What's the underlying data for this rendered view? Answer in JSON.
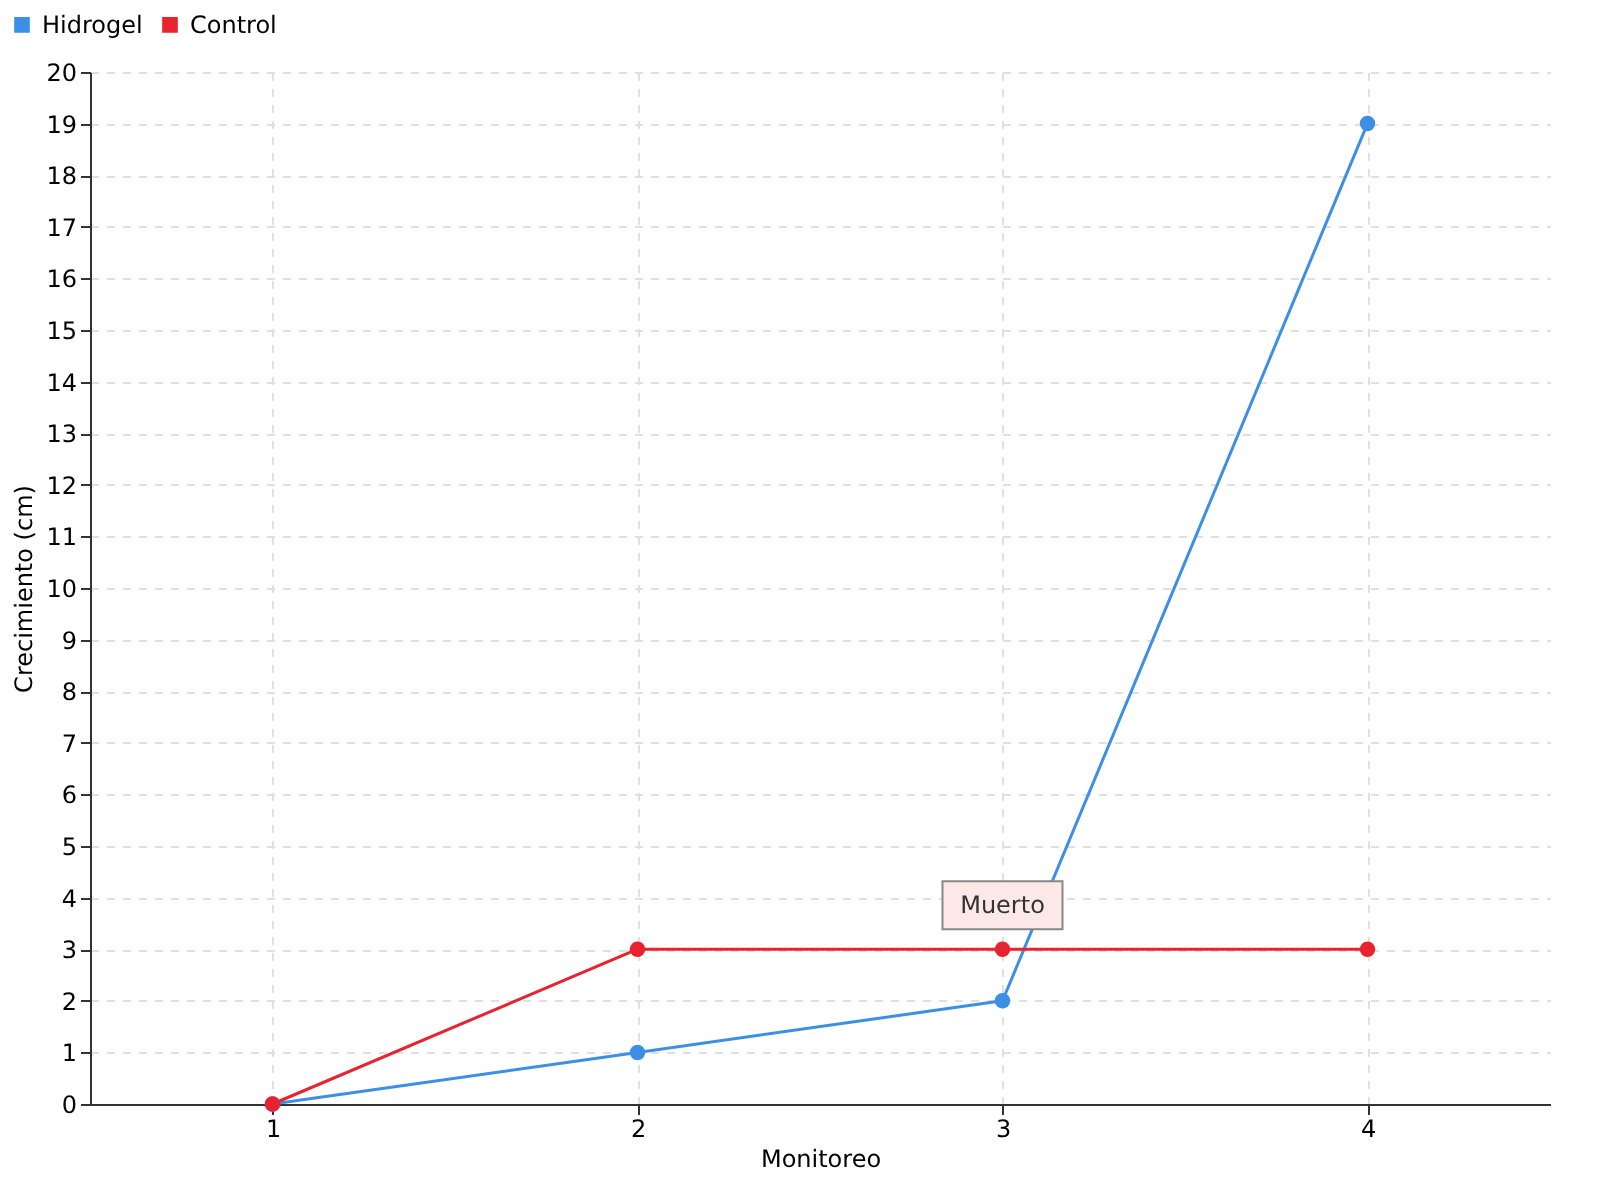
{
  "chart_data": {
    "type": "line",
    "xlabel": "Monitoreo",
    "ylabel": "Crecimiento (cm)",
    "x": [
      1,
      2,
      3,
      4
    ],
    "xlim": [
      0.5,
      4.5
    ],
    "xticks": [
      1,
      2,
      3,
      4
    ],
    "ylim": [
      0,
      20
    ],
    "yticks": [
      0,
      1,
      2,
      3,
      4,
      5,
      6,
      7,
      8,
      9,
      10,
      11,
      12,
      13,
      14,
      15,
      16,
      17,
      18,
      19,
      20
    ],
    "series": [
      {
        "name": "Hidrogel",
        "color": "#3d8fe6",
        "values": [
          0,
          1,
          2,
          19
        ]
      },
      {
        "name": "Control",
        "color": "#e8232f",
        "values": [
          0,
          3,
          3,
          3
        ]
      }
    ],
    "annotations": [
      {
        "text": "Muerto",
        "x": 3,
        "y": 3
      }
    ],
    "grid": true,
    "legend": "top left",
    "marker": "circle",
    "line_style": "solid"
  }
}
